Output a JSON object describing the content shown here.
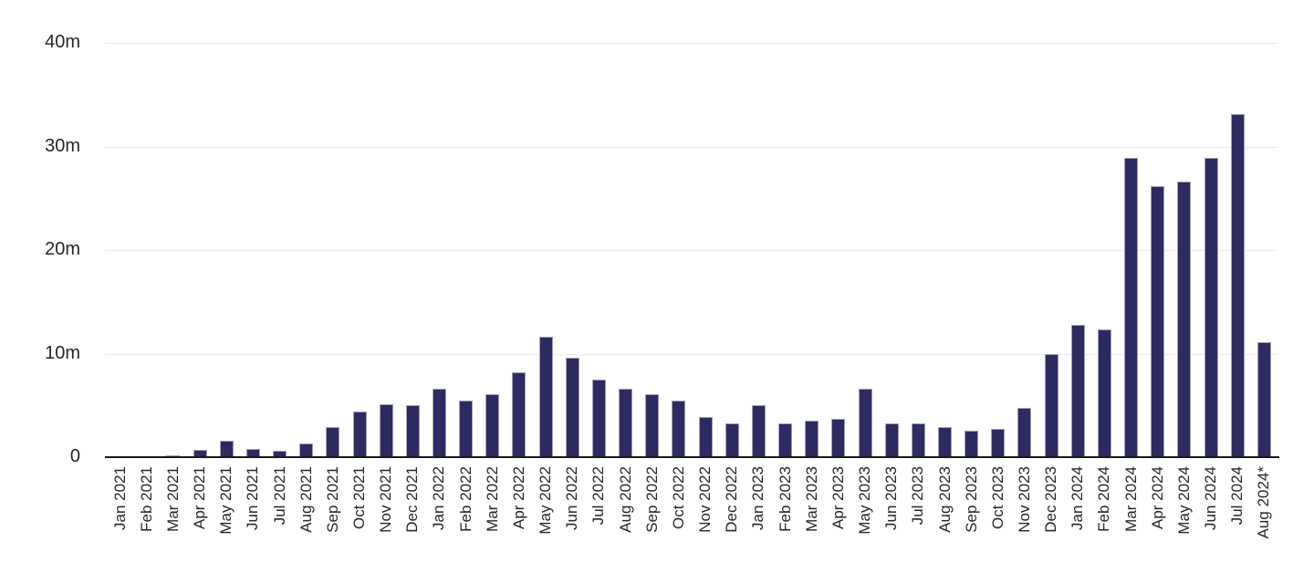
{
  "chart_data": {
    "type": "bar",
    "title": "",
    "xlabel": "",
    "ylabel": "",
    "legend": "none",
    "grid": "horizontal",
    "ylim": [
      0,
      40
    ],
    "unit": "m",
    "yticks": [
      {
        "value": 0,
        "label": "0"
      },
      {
        "value": 10,
        "label": "10m"
      },
      {
        "value": 20,
        "label": "20m"
      },
      {
        "value": 30,
        "label": "30m"
      },
      {
        "value": 40,
        "label": "40m"
      }
    ],
    "categories": [
      "Jan 2021",
      "Feb 2021",
      "Mar 2021",
      "Apr 2021",
      "May 2021",
      "Jun 2021",
      "Jul 2021",
      "Aug 2021",
      "Sep 2021",
      "Oct 2021",
      "Nov 2021",
      "Dec 2021",
      "Jan 2022",
      "Feb 2022",
      "Mar 2022",
      "Apr 2022",
      "May 2022",
      "Jun 2022",
      "Jul 2022",
      "Aug 2022",
      "Sep 2022",
      "Oct 2022",
      "Nov 2022",
      "Dec 2022",
      "Jan 2023",
      "Feb 2023",
      "Mar 2023",
      "Apr 2023",
      "May 2023",
      "Jun 2023",
      "Jul 2023",
      "Aug 2023",
      "Sep 2023",
      "Oct 2023",
      "Nov 2023",
      "Dec 2023",
      "Jan 2024",
      "Feb 2024",
      "Mar 2024",
      "Apr 2024",
      "May 2024",
      "Jun 2024",
      "Jul 2024",
      "Aug 2024*"
    ],
    "values": [
      0,
      0,
      0.2,
      0.7,
      1.6,
      0.8,
      0.6,
      1.3,
      2.9,
      4.4,
      5.1,
      5.0,
      6.6,
      5.5,
      6.1,
      8.2,
      11.6,
      9.6,
      7.5,
      6.6,
      6.1,
      5.5,
      3.9,
      3.3,
      5.0,
      3.3,
      3.5,
      3.7,
      6.6,
      3.3,
      3.3,
      2.9,
      2.6,
      2.7,
      4.8,
      10.0,
      12.8,
      12.3,
      28.9,
      26.2,
      26.6,
      28.9,
      33.1,
      11.1
    ],
    "colors": {
      "bar_fill": "#2e2a62",
      "bar_border": "rgba(255,255,255,0.55)",
      "gridline": "#ebebeb",
      "axis_line": "#1a1a1a",
      "label_text": "#262626"
    }
  }
}
